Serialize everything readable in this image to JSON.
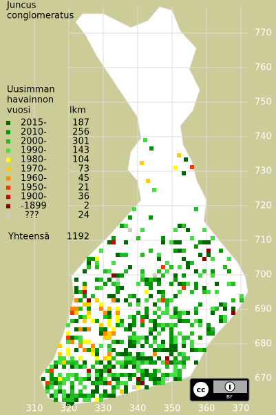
{
  "title": [
    "Juncus",
    "conglomeratus"
  ],
  "legend": {
    "heading": [
      "Uusimman",
      "havainnon",
      "vuosi"
    ],
    "count_heading": "lkm",
    "rows": [
      {
        "label": "2015-",
        "count": 187,
        "color": "#006600"
      },
      {
        "label": "2010-",
        "count": 256,
        "color": "#009900"
      },
      {
        "label": "2000-",
        "count": 301,
        "color": "#22bb22"
      },
      {
        "label": "1990-",
        "count": 143,
        "color": "#44dd44"
      },
      {
        "label": "1980-",
        "count": 104,
        "color": "#ffff00"
      },
      {
        "label": "1970-",
        "count": 73,
        "color": "#ffcc00"
      },
      {
        "label": "1960-",
        "count": 45,
        "color": "#ff8800"
      },
      {
        "label": "1950-",
        "count": 21,
        "color": "#ff3300"
      },
      {
        "label": "1900-",
        "count": 36,
        "color": "#cc0000"
      },
      {
        "label": "-1899",
        "count": 2,
        "color": "#880000"
      },
      {
        "label": "???",
        "count": 24,
        "color": "#cccccc"
      }
    ],
    "total_label": "Yhteensä",
    "total": 1192
  },
  "y_labels": [
    770,
    760,
    750,
    740,
    730,
    720,
    710,
    700,
    690,
    680,
    670
  ],
  "x_labels": [
    310,
    320,
    330,
    340,
    350,
    360,
    370
  ],
  "license": "BY"
}
